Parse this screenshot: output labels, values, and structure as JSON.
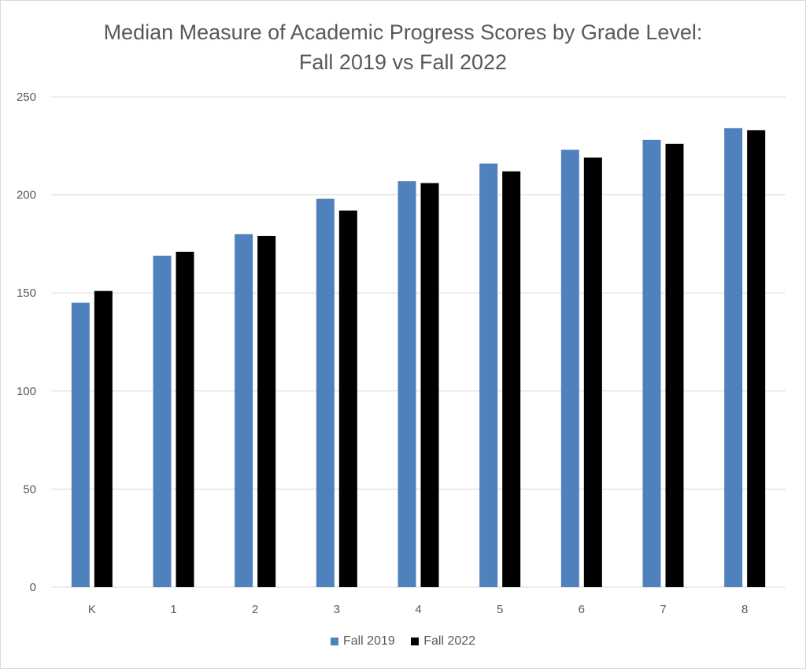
{
  "chart_data": {
    "type": "bar",
    "title_line1": "Median Measure of Academic Progress Scores by Grade Level:",
    "title_line2": "Fall 2019 vs Fall 2022",
    "categories": [
      "K",
      "1",
      "2",
      "3",
      "4",
      "5",
      "6",
      "7",
      "8"
    ],
    "series": [
      {
        "name": "Fall 2019",
        "color": "#4f81bd",
        "values": [
          145,
          169,
          180,
          198,
          207,
          216,
          223,
          228,
          234
        ]
      },
      {
        "name": "Fall 2022",
        "color": "#000000",
        "values": [
          151,
          171,
          179,
          192,
          206,
          212,
          219,
          226,
          233
        ]
      }
    ],
    "ylim": [
      0,
      250
    ],
    "yticks": [
      0,
      50,
      100,
      150,
      200,
      250
    ],
    "grid": true,
    "legend_position": "bottom"
  }
}
